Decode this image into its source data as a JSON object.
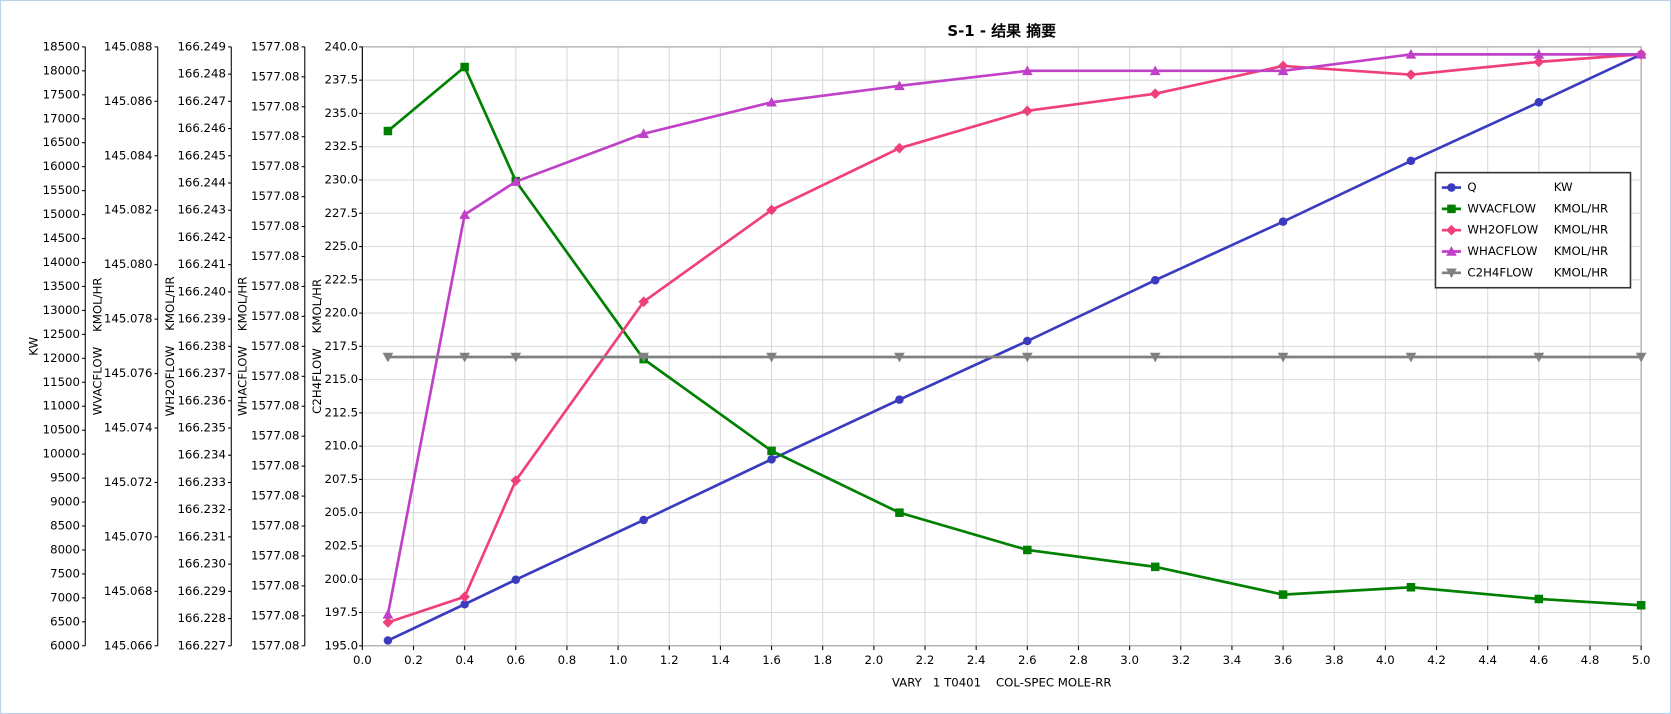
{
  "chart_data": {
    "type": "line",
    "title": "S-1 - 结果 摘要",
    "x_label": "VARY   1 T0401    COL-SPEC MOLE-RR",
    "x": [
      0.1,
      0.4,
      0.6,
      1.1,
      1.6,
      2.1,
      2.6,
      3.1,
      3.6,
      4.1,
      4.6,
      5.0
    ],
    "xlim": [
      0,
      5
    ],
    "xticks": [
      {
        "value": 0,
        "label": "0.0"
      },
      0.2,
      0.4,
      0.6,
      0.8,
      {
        "value": 1,
        "label": "1.0"
      },
      1.2,
      1.4,
      1.6,
      1.8,
      {
        "value": 2,
        "label": "2.0"
      },
      2.2,
      2.4,
      2.6,
      2.8,
      {
        "value": 3,
        "label": "3.0"
      },
      3.2,
      3.4,
      3.6,
      3.8,
      {
        "value": 4,
        "label": "4.0"
      },
      4.2,
      4.4,
      4.6,
      4.8,
      {
        "value": 5,
        "label": "5.0"
      }
    ],
    "grid": true,
    "y_axes": [
      {
        "label": "KW",
        "ylim": [
          6000,
          18500
        ],
        "yticks": [
          6000,
          6500,
          7000,
          7500,
          8000,
          8500,
          9000,
          9500,
          10000,
          10500,
          11000,
          11500,
          12000,
          12500,
          13000,
          13500,
          14000,
          14500,
          15000,
          15500,
          16000,
          16500,
          17000,
          17500,
          18000,
          18500
        ]
      },
      {
        "label": "WVACFLOW    KMOL/HR",
        "ylim": [
          145.066,
          145.088
        ],
        "yticks": [
          145.066,
          145.068,
          {
            "value": 145.07,
            "label": "145.070"
          },
          145.072,
          145.074,
          145.076,
          145.078,
          {
            "value": 145.08,
            "label": "145.080"
          },
          145.082,
          145.084,
          145.086,
          145.088
        ]
      },
      {
        "label": "WH2OFLOW    KMOL/HR",
        "ylim": [
          166.227,
          166.249
        ],
        "yticks": [
          166.227,
          166.228,
          166.229,
          {
            "value": 166.23,
            "label": "166.230"
          },
          166.231,
          166.232,
          166.233,
          166.234,
          166.235,
          166.236,
          166.237,
          166.238,
          166.239,
          {
            "value": 166.24,
            "label": "166.240"
          },
          166.241,
          166.242,
          166.243,
          166.244,
          166.245,
          166.246,
          166.247,
          166.248,
          166.249
        ]
      },
      {
        "label": "WHACFLOW    KMOL/HR",
        "ylim": [
          1577.078,
          1577.082
        ],
        "yticks": [
          {
            "value": 1577.078,
            "label": "1577.08"
          },
          {
            "value": 1577.0782,
            "label": "1577.08"
          },
          {
            "value": 1577.0784,
            "label": "1577.08"
          },
          {
            "value": 1577.0786,
            "label": "1577.08"
          },
          {
            "value": 1577.0788,
            "label": "1577.08"
          },
          {
            "value": 1577.079,
            "label": "1577.08"
          },
          {
            "value": 1577.0792,
            "label": "1577.08"
          },
          {
            "value": 1577.0794,
            "label": "1577.08"
          },
          {
            "value": 1577.0796,
            "label": "1577.08"
          },
          {
            "value": 1577.0798,
            "label": "1577.08"
          },
          1577.08,
          {
            "value": 1577.0802,
            "label": "1577.08"
          },
          {
            "value": 1577.0804,
            "label": "1577.08"
          },
          {
            "value": 1577.0806,
            "label": "1577.08"
          },
          {
            "value": 1577.0808,
            "label": "1577.08"
          },
          {
            "value": 1577.081,
            "label": "1577.08"
          },
          {
            "value": 1577.0812,
            "label": "1577.08"
          },
          {
            "value": 1577.0814,
            "label": "1577.08"
          },
          {
            "value": 1577.0816,
            "label": "1577.08"
          },
          {
            "value": 1577.0818,
            "label": "1577.08"
          },
          {
            "value": 1577.082,
            "label": "1577.08"
          }
        ]
      },
      {
        "label": "C2H4FLOW    KMOL/HR",
        "ylim": [
          195,
          240
        ],
        "yticks": [
          {
            "value": 195,
            "label": "195.0"
          },
          197.5,
          {
            "value": 200,
            "label": "200.0"
          },
          202.5,
          {
            "value": 205,
            "label": "205.0"
          },
          207.5,
          {
            "value": 210,
            "label": "210.0"
          },
          212.5,
          {
            "value": 215,
            "label": "215.0"
          },
          217.5,
          {
            "value": 220,
            "label": "220.0"
          },
          222.5,
          {
            "value": 225,
            "label": "225.0"
          },
          227.5,
          {
            "value": 230,
            "label": "230.0"
          },
          232.5,
          {
            "value": 235,
            "label": "235.0"
          },
          237.5,
          {
            "value": 240,
            "label": "240.0"
          }
        ]
      }
    ],
    "series": [
      {
        "name": "Q",
        "unit": "KW",
        "color": "#3b3bbf",
        "marker": "circle",
        "axis": 0,
        "values": [
          6111,
          6867,
          7379,
          8625,
          9892,
          11138,
          12361,
          13630,
          14852,
          16120,
          17343,
          18343
        ]
      },
      {
        "name": "WVACFLOW",
        "unit": "KMOL/HR",
        "color": "#008000",
        "marker": "square",
        "axis": 1,
        "values": [
          145.08491,
          145.08726,
          145.08307,
          145.07653,
          145.07316,
          145.07089,
          145.06952,
          145.0689,
          145.06788,
          145.06815,
          145.06772,
          145.06749
        ]
      },
      {
        "name": "WH2OFLOW",
        "unit": "KMOL/HR",
        "color": "#f0407a",
        "marker": "diamond",
        "axis": 2,
        "values": [
          166.22786,
          166.2288,
          166.23307,
          166.23964,
          166.24301,
          166.24528,
          166.24665,
          166.24728,
          166.2483,
          166.24798,
          166.24845,
          166.24873
        ]
      },
      {
        "name": "WHACFLOW",
        "unit": "KMOL/HR",
        "color": "#c040c8",
        "marker": "triangle-up",
        "axis": 3,
        "values": [
          1577.07821,
          1577.08088,
          1577.0811,
          1577.08142,
          1577.08163,
          1577.08174,
          1577.08184,
          1577.08184,
          1577.08184,
          1577.08195,
          1577.08195,
          1577.08195
        ]
      },
      {
        "name": "C2H4FLOW",
        "unit": "KMOL/HR",
        "color": "#808080",
        "marker": "triangle-down",
        "axis": 4,
        "values": [
          216.7,
          216.7,
          216.7,
          216.7,
          216.7,
          216.7,
          216.7,
          216.7,
          216.7,
          216.7,
          216.7,
          216.7
        ]
      }
    ]
  }
}
